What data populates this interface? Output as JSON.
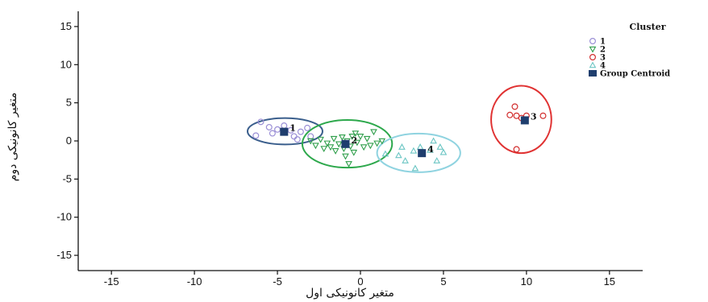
{
  "chart_data": {
    "type": "scatter",
    "xlabel": "متغیر کانونیکی اول",
    "ylabel": "متغیر کانونیکی دوم",
    "xlim": [
      -17,
      17
    ],
    "ylim": [
      -17,
      17
    ],
    "x_ticks": [
      -15,
      -10,
      -5,
      0,
      5,
      10,
      15
    ],
    "y_ticks": [
      -15,
      -10,
      -5,
      0,
      5,
      10,
      15
    ],
    "x_tick_labels": [
      "-15",
      "-10",
      "-5",
      "0",
      "5",
      "10",
      "15"
    ],
    "y_tick_labels": [
      "-15",
      "-10",
      "-5",
      "0",
      "5",
      "10",
      "15"
    ],
    "grid": false,
    "legend": {
      "title": "Cluster",
      "placement": "top-right",
      "entries": [
        "1",
        "2",
        "3",
        "4",
        "Group Centroid"
      ]
    },
    "colors": {
      "cluster_1": "#9b8fd6",
      "cluster_2": "#2e9e4a",
      "cluster_3": "#d22f2f",
      "cluster_4": "#6cc6c4",
      "ellipse_1": "#3a5e8c",
      "ellipse_2": "#2da84c",
      "ellipse_3": "#e03232",
      "ellipse_4": "#8fd3e0",
      "centroid": "#1f3e6e"
    },
    "series": [
      {
        "name": "1",
        "marker": "circle",
        "points": [
          [
            -6.0,
            2.5
          ],
          [
            -6.3,
            0.7
          ],
          [
            -5.5,
            1.8
          ],
          [
            -5.0,
            1.5
          ],
          [
            -4.6,
            2.0
          ],
          [
            -4.2,
            1.4
          ],
          [
            -4.0,
            0.6
          ],
          [
            -3.6,
            1.2
          ],
          [
            -3.2,
            1.7
          ],
          [
            -3.0,
            0.6
          ],
          [
            -3.8,
            0.2
          ],
          [
            -5.3,
            1.0
          ]
        ],
        "centroid": [
          -4.6,
          1.2
        ],
        "centroid_label": "1"
      },
      {
        "name": "2",
        "marker": "triangle-down",
        "points": [
          [
            -3.0,
            0.0
          ],
          [
            -2.7,
            -0.6
          ],
          [
            -2.4,
            0.2
          ],
          [
            -2.2,
            -1.0
          ],
          [
            -2.0,
            -0.3
          ],
          [
            -1.8,
            -0.8
          ],
          [
            -1.6,
            0.3
          ],
          [
            -1.5,
            -1.3
          ],
          [
            -1.3,
            -0.4
          ],
          [
            -1.1,
            0.5
          ],
          [
            -1.0,
            -1.0
          ],
          [
            -0.8,
            0.0
          ],
          [
            -0.6,
            -0.7
          ],
          [
            -0.5,
            0.6
          ],
          [
            -0.4,
            -1.5
          ],
          [
            -0.3,
            1.0
          ],
          [
            -0.2,
            -0.2
          ],
          [
            0.0,
            0.6
          ],
          [
            0.2,
            -0.8
          ],
          [
            0.4,
            0.3
          ],
          [
            0.6,
            -0.6
          ],
          [
            0.8,
            1.2
          ],
          [
            1.0,
            -0.3
          ],
          [
            1.3,
            0.0
          ],
          [
            -0.9,
            -2.0
          ],
          [
            -0.7,
            -3.0
          ]
        ],
        "centroid": [
          -0.9,
          -0.4
        ],
        "centroid_label": "2"
      },
      {
        "name": "3",
        "marker": "circle",
        "points": [
          [
            9.3,
            4.5
          ],
          [
            9.0,
            3.4
          ],
          [
            9.4,
            3.3
          ],
          [
            9.7,
            3.0
          ],
          [
            10.0,
            3.3
          ],
          [
            11.0,
            3.3
          ],
          [
            9.4,
            -1.1
          ]
        ],
        "centroid": [
          9.9,
          2.7
        ],
        "centroid_label": "3"
      },
      {
        "name": "4",
        "marker": "triangle-up",
        "points": [
          [
            1.5,
            -1.7
          ],
          [
            2.3,
            -1.9
          ],
          [
            2.7,
            -2.6
          ],
          [
            3.2,
            -1.3
          ],
          [
            3.6,
            -0.8
          ],
          [
            3.3,
            -3.6
          ],
          [
            4.2,
            -1.2
          ],
          [
            4.4,
            0.0
          ],
          [
            4.8,
            -0.8
          ],
          [
            5.0,
            -1.5
          ],
          [
            4.6,
            -2.6
          ],
          [
            2.5,
            -0.8
          ]
        ],
        "centroid": [
          3.7,
          -1.6
        ],
        "centroid_label": "4"
      }
    ]
  }
}
